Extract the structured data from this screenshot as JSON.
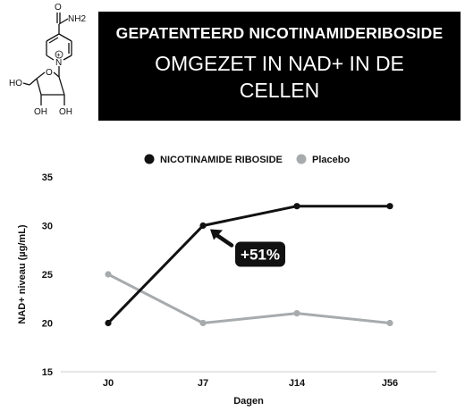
{
  "title": {
    "line1": "GEPATENTEERD NICOTINAMIDERIBOSIDE",
    "line2": "OMGEZET IN NAD+ IN DE",
    "line3": "CELLEN"
  },
  "molecule": {
    "labels": [
      "O",
      "NH2",
      "N",
      "+",
      "HO",
      "O",
      "OH",
      "OH"
    ]
  },
  "chart_data": {
    "type": "line",
    "categories": [
      "J0",
      "J7",
      "J14",
      "J56"
    ],
    "series": [
      {
        "name": "NICOTINAMIDE RIBOSIDE",
        "values": [
          20,
          30,
          32,
          32
        ],
        "color": "#111111"
      },
      {
        "name": "Placebo",
        "values": [
          25,
          20,
          21,
          20
        ],
        "color": "#a7abad"
      }
    ],
    "xlabel": "Dagen",
    "ylabel": "NAD+ niveau (µg/mL)",
    "ylim": [
      15,
      35
    ],
    "yticks": [
      15,
      20,
      25,
      30,
      35
    ],
    "grid": false,
    "legend_position": "top",
    "annotation": {
      "text": "+51%",
      "category": "J7",
      "series": 0
    }
  }
}
